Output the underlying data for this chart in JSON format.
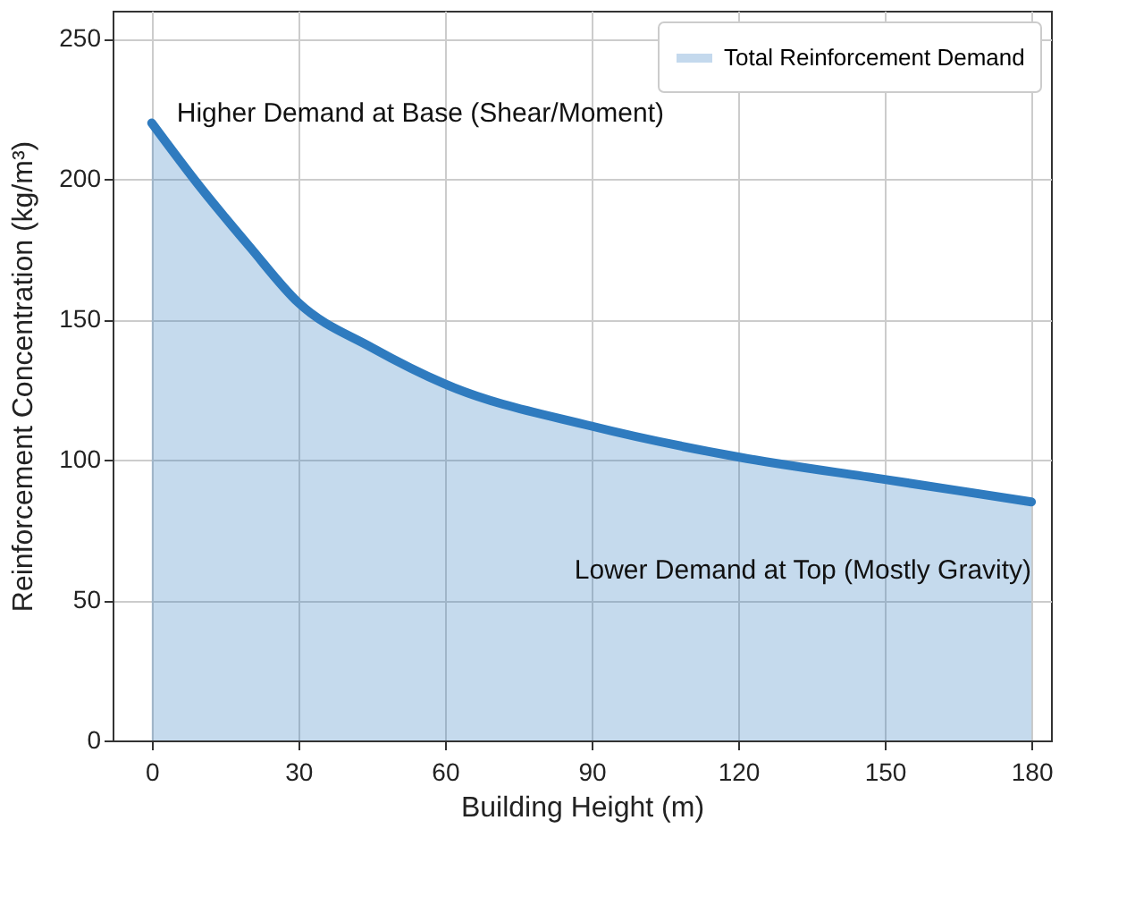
{
  "chart_data": {
    "type": "area",
    "xlabel": "Building Height (m)",
    "ylabel": "Reinforcement Concentration (kg/m³)",
    "x": [
      0,
      10,
      20,
      30,
      45,
      60,
      90,
      120,
      150,
      180
    ],
    "series": [
      {
        "name": "Total Reinforcement Demand",
        "color": "#2f7bbf",
        "values": [
          220,
          197,
          176,
          156,
          140,
          127,
          112,
          101,
          93,
          85
        ]
      }
    ],
    "xlim": [
      -8,
      184
    ],
    "xticks": [
      0,
      30,
      60,
      90,
      120,
      150,
      180
    ],
    "ylim": [
      0,
      260
    ],
    "yticks": [
      0,
      50,
      100,
      150,
      200,
      250
    ],
    "grid": true,
    "legend": "top right",
    "annotations": [
      {
        "text": "Higher Demand at Base (Shear/Moment)",
        "x": 0,
        "y": 220
      },
      {
        "text": "Lower Demand at Top (Mostly Gravity)",
        "x": 180,
        "y": 85
      }
    ]
  }
}
